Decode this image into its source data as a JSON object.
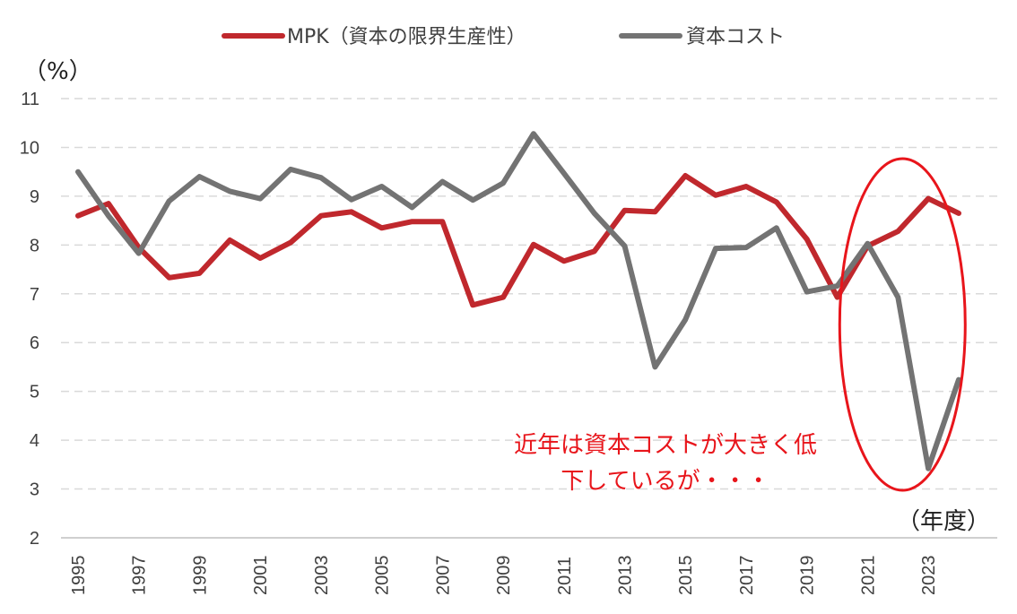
{
  "chart_data": {
    "type": "line",
    "ylabel": "（%）",
    "xlabel": "（年度）",
    "ylim": [
      2,
      11
    ],
    "y_ticks": [
      2,
      3,
      4,
      5,
      6,
      7,
      8,
      9,
      10,
      11
    ],
    "grid": "horizontal dashed",
    "legend_position": "top-center",
    "x": [
      1995,
      1996,
      1997,
      1998,
      1999,
      2000,
      2001,
      2002,
      2003,
      2004,
      2005,
      2006,
      2007,
      2008,
      2009,
      2010,
      2011,
      2012,
      2013,
      2014,
      2015,
      2016,
      2017,
      2018,
      2019,
      2020,
      2021,
      2022,
      2023,
      2024
    ],
    "x_tick_labels": [
      "1995",
      "1997",
      "1999",
      "2001",
      "2003",
      "2005",
      "2007",
      "2009",
      "2011",
      "2013",
      "2015",
      "2017",
      "2019",
      "2021",
      "2023"
    ],
    "series": [
      {
        "name": "MPK（資本の限界生産性）",
        "color": "#c0282d",
        "values": [
          8.6,
          8.85,
          7.95,
          7.33,
          7.42,
          8.1,
          7.73,
          8.05,
          8.6,
          8.68,
          8.35,
          8.48,
          8.48,
          6.77,
          6.93,
          8.01,
          7.67,
          7.87,
          8.71,
          8.68,
          9.42,
          9.02,
          9.2,
          8.88,
          8.12,
          6.93,
          7.98,
          8.28,
          8.95,
          8.65
        ]
      },
      {
        "name": "資本コスト",
        "color": "#737373",
        "values": [
          9.5,
          8.6,
          7.83,
          8.9,
          9.4,
          9.1,
          8.95,
          9.55,
          9.38,
          8.93,
          9.2,
          8.77,
          9.3,
          8.92,
          9.27,
          10.28,
          9.47,
          8.65,
          7.98,
          5.5,
          6.47,
          7.93,
          7.95,
          8.35,
          7.04,
          7.16,
          8.03,
          6.93,
          3.42,
          5.24
        ]
      }
    ],
    "annotations": [
      {
        "text_line1": "近年は資本コストが大きく低",
        "text_line2": "下しているが・・・",
        "color": "#e8151b"
      }
    ],
    "highlight": {
      "shape": "ellipse",
      "color": "#e8151b",
      "x_range": [
        2020,
        2024
      ]
    }
  }
}
